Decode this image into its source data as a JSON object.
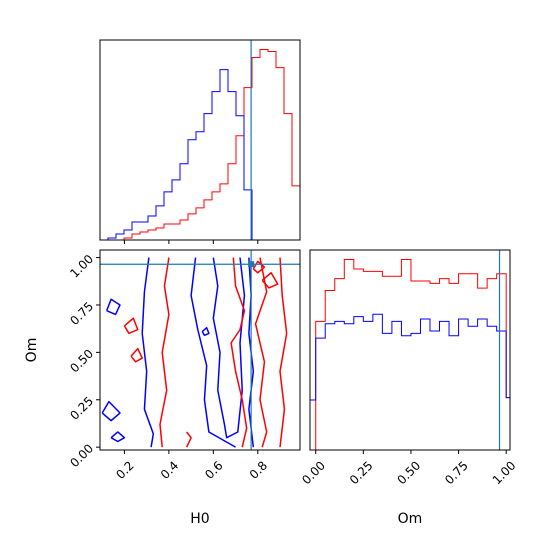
{
  "chart_data": {
    "type": "corner",
    "parameters": [
      "H0",
      "Om"
    ],
    "truth": {
      "H0": 0.77,
      "Om": 0.965
    },
    "colors": {
      "red": "#ff0000",
      "blue": "#0000ff",
      "truth": "#1f77b4"
    },
    "panels": [
      {
        "id": "h0-marginal",
        "type": "step-histogram",
        "x_param": "H0",
        "xlim": [
          0.09,
          0.99
        ],
        "show_y_ticks": false,
        "bin_edges": [
          0.09,
          0.126,
          0.162,
          0.198,
          0.234,
          0.27,
          0.306,
          0.342,
          0.378,
          0.414,
          0.45,
          0.486,
          0.522,
          0.558,
          0.594,
          0.63,
          0.666,
          0.702,
          0.738,
          0.774,
          0.81,
          0.846,
          0.882,
          0.918,
          0.954,
          0.99
        ],
        "series": [
          {
            "color": "red",
            "counts": [
              0,
              0,
              0,
              1,
              3,
              4,
              5,
              6,
              8,
              8,
              10,
              13,
              16,
              20,
              24,
              28,
              38,
              52,
              76,
              91,
              95,
              94,
              86,
              63,
              27
            ]
          },
          {
            "color": "blue",
            "counts": [
              0,
              1,
              3,
              5,
              9,
              9,
              12,
              17,
              24,
              30,
              38,
              50,
              54,
              63,
              74,
              85,
              74,
              62,
              25,
              0,
              0,
              0,
              0,
              0,
              0
            ]
          }
        ]
      },
      {
        "id": "om-marginal",
        "type": "step-histogram",
        "x_param": "Om",
        "xlim": [
          -0.03,
          1.02
        ],
        "xticks": [
          "0.00",
          "0.25",
          "0.50",
          "0.75",
          "1.00"
        ],
        "show_y_ticks": false,
        "bin_edges": [
          -0.03,
          0.0,
          0.05,
          0.1,
          0.15,
          0.2,
          0.25,
          0.3,
          0.35,
          0.4,
          0.45,
          0.5,
          0.55,
          0.6,
          0.65,
          0.7,
          0.75,
          0.8,
          0.85,
          0.9,
          0.95,
          1.0,
          1.02
        ],
        "series": [
          {
            "color": "red",
            "counts": [
              0,
              54,
              67,
              72,
              80,
              76,
              75,
              75,
              73,
              73,
              80,
              71,
              71,
              70,
              72,
              70,
              74,
              74,
              68,
              72,
              74,
              22
            ]
          },
          {
            "color": "blue",
            "counts": [
              21,
              47,
              53,
              54,
              53,
              56,
              54,
              57,
              49,
              54,
              48,
              49,
              55,
              50,
              54,
              48,
              55,
              52,
              55,
              52,
              50,
              22
            ]
          }
        ]
      },
      {
        "id": "h0-om-joint",
        "type": "contour",
        "x_param": "H0",
        "y_param": "Om",
        "xlim": [
          0.09,
          0.99
        ],
        "ylim": [
          -0.015,
          1.04
        ],
        "xticks": [
          "0.2",
          "0.4",
          "0.6",
          "0.8"
        ],
        "yticks": [
          "0.00",
          "0.25",
          "0.50",
          "0.75",
          "1.00"
        ],
        "xlabel": "H0",
        "ylabel": "Om",
        "contours": [
          {
            "color": "blue",
            "points": [
              [
                0.31,
                1.0
              ],
              [
                0.29,
                0.82
              ],
              [
                0.28,
                0.6
              ],
              [
                0.3,
                0.4
              ],
              [
                0.29,
                0.2
              ],
              [
                0.33,
                0.07
              ],
              [
                0.32,
                0.0
              ]
            ]
          },
          {
            "color": "blue",
            "points": [
              [
                0.52,
                1.0
              ],
              [
                0.5,
                0.8
              ],
              [
                0.53,
                0.62
              ],
              [
                0.57,
                0.43
              ],
              [
                0.56,
                0.25
              ],
              [
                0.58,
                0.08
              ],
              [
                0.7,
                0.0
              ]
            ]
          },
          {
            "color": "blue",
            "points": [
              [
                0.6,
                1.0
              ],
              [
                0.62,
                0.85
              ],
              [
                0.6,
                0.68
              ],
              [
                0.63,
                0.5
              ],
              [
                0.62,
                0.3
              ],
              [
                0.65,
                0.12
              ],
              [
                0.66,
                0.05
              ],
              [
                0.71,
                0.08
              ],
              [
                0.73,
                0.3
              ],
              [
                0.72,
                0.55
              ],
              [
                0.74,
                0.8
              ],
              [
                0.72,
                1.0
              ]
            ]
          },
          {
            "color": "blue",
            "points": [
              [
                0.76,
                1.0
              ],
              [
                0.77,
                0.8
              ],
              [
                0.76,
                0.6
              ],
              [
                0.78,
                0.4
              ],
              [
                0.76,
                0.2
              ],
              [
                0.78,
                0.0
              ]
            ]
          },
          {
            "color": "blue",
            "points": [
              [
                0.12,
                0.72
              ],
              [
                0.14,
                0.78
              ],
              [
                0.18,
                0.75
              ],
              [
                0.16,
                0.7
              ],
              [
                0.12,
                0.72
              ]
            ]
          },
          {
            "color": "blue",
            "points": [
              [
                0.1,
                0.18
              ],
              [
                0.13,
                0.24
              ],
              [
                0.18,
                0.18
              ],
              [
                0.14,
                0.14
              ],
              [
                0.1,
                0.18
              ]
            ]
          },
          {
            "color": "blue",
            "points": [
              [
                0.55,
                0.61
              ],
              [
                0.57,
                0.63
              ],
              [
                0.58,
                0.6
              ],
              [
                0.56,
                0.59
              ],
              [
                0.55,
                0.61
              ]
            ]
          },
          {
            "color": "blue",
            "points": [
              [
                0.14,
                0.05
              ],
              [
                0.17,
                0.08
              ],
              [
                0.2,
                0.05
              ],
              [
                0.17,
                0.03
              ],
              [
                0.14,
                0.05
              ]
            ]
          },
          {
            "color": "red",
            "points": [
              [
                0.4,
                1.0
              ],
              [
                0.38,
                0.85
              ],
              [
                0.4,
                0.7
              ],
              [
                0.37,
                0.5
              ],
              [
                0.39,
                0.3
              ],
              [
                0.36,
                0.12
              ],
              [
                0.37,
                0.0
              ]
            ]
          },
          {
            "color": "red",
            "points": [
              [
                0.48,
                0.0
              ],
              [
                0.5,
                0.05
              ],
              [
                0.48,
                0.08
              ]
            ]
          },
          {
            "color": "red",
            "points": [
              [
                0.69,
                1.0
              ],
              [
                0.7,
                0.85
              ],
              [
                0.74,
                0.72
              ],
              [
                0.72,
                0.62
              ],
              [
                0.68,
                0.55
              ],
              [
                0.7,
                0.4
              ],
              [
                0.73,
                0.25
              ],
              [
                0.75,
                0.1
              ],
              [
                0.73,
                0.0
              ]
            ]
          },
          {
            "color": "red",
            "points": [
              [
                0.81,
                1.0
              ],
              [
                0.84,
                0.82
              ],
              [
                0.79,
                0.65
              ],
              [
                0.83,
                0.45
              ],
              [
                0.81,
                0.25
              ],
              [
                0.84,
                0.08
              ],
              [
                0.82,
                0.0
              ]
            ]
          },
          {
            "color": "red",
            "points": [
              [
                0.9,
                1.0
              ],
              [
                0.91,
                0.8
              ],
              [
                0.93,
                0.6
              ],
              [
                0.9,
                0.4
              ],
              [
                0.92,
                0.2
              ],
              [
                0.9,
                0.0
              ]
            ]
          },
          {
            "color": "red",
            "points": [
              [
                0.82,
                0.88
              ],
              [
                0.86,
                0.92
              ],
              [
                0.89,
                0.86
              ],
              [
                0.85,
                0.84
              ],
              [
                0.82,
                0.88
              ]
            ]
          },
          {
            "color": "red",
            "points": [
              [
                0.2,
                0.64
              ],
              [
                0.24,
                0.68
              ],
              [
                0.26,
                0.62
              ],
              [
                0.22,
                0.6
              ],
              [
                0.2,
                0.64
              ]
            ]
          },
          {
            "color": "red",
            "points": [
              [
                0.23,
                0.48
              ],
              [
                0.26,
                0.52
              ],
              [
                0.28,
                0.47
              ],
              [
                0.25,
                0.45
              ],
              [
                0.23,
                0.48
              ]
            ]
          },
          {
            "color": "red",
            "points": [
              [
                0.78,
                0.94
              ],
              [
                0.8,
                0.98
              ],
              [
                0.83,
                0.95
              ],
              [
                0.8,
                0.92
              ],
              [
                0.78,
                0.94
              ]
            ]
          }
        ]
      }
    ]
  }
}
